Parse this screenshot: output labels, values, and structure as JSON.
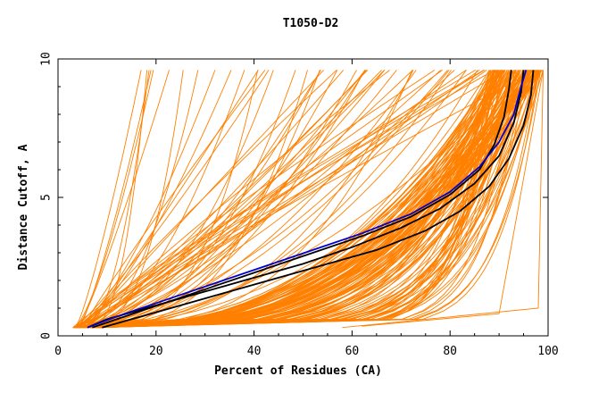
{
  "chart_data": {
    "type": "line",
    "title": "T1050-D2",
    "xlabel": "Percent of Residues (CA)",
    "ylabel": "Distance Cutoff, A",
    "xlim": [
      0,
      100
    ],
    "ylim": [
      0,
      10
    ],
    "xticks": [
      0,
      20,
      40,
      60,
      80,
      100
    ],
    "yticks": [
      0,
      5,
      10
    ],
    "grid": false,
    "legend": "none",
    "colors": {
      "background_series": "#ff8000",
      "highlight_dark": "#000000",
      "highlight_blue": "#0000cc"
    },
    "series_groups": [
      {
        "color": "#ff8000",
        "count": 140,
        "description_pattern": "dense band of model GDT curves",
        "x_start_range": [
          3,
          9
        ],
        "x_end_range": [
          88,
          99
        ]
      },
      {
        "color": "#ff8000",
        "count": 60,
        "description_pattern": "sparse steep curves",
        "x_start_range": [
          3,
          6
        ],
        "x_end_range": [
          15,
          99
        ]
      }
    ],
    "highlight_series": [
      {
        "color": "#000000",
        "x": [
          6,
          10,
          20,
          30,
          40,
          50,
          60,
          70,
          78,
          85,
          90,
          93,
          94.5,
          95
        ],
        "y": [
          0.3,
          0.6,
          1.1,
          1.6,
          2.1,
          2.6,
          3.2,
          3.9,
          4.6,
          5.5,
          6.5,
          7.7,
          8.8,
          9.6
        ]
      },
      {
        "color": "#000000",
        "x": [
          9,
          15,
          25,
          35,
          45,
          55,
          65,
          75,
          82,
          88,
          92,
          95,
          96.5,
          97
        ],
        "y": [
          0.3,
          0.6,
          1.1,
          1.6,
          2.1,
          2.6,
          3.1,
          3.8,
          4.5,
          5.4,
          6.4,
          7.6,
          8.7,
          9.6
        ]
      },
      {
        "color": "#000000",
        "x": [
          7,
          12,
          22,
          32,
          42,
          52,
          62,
          72,
          80,
          86,
          89,
          91,
          92,
          92.5
        ],
        "y": [
          0.3,
          0.6,
          1.2,
          1.8,
          2.4,
          3.0,
          3.6,
          4.3,
          5.1,
          6.0,
          6.9,
          7.9,
          8.9,
          9.6
        ]
      },
      {
        "color": "#0000cc",
        "x": [
          6,
          12,
          22,
          32,
          42,
          52,
          62,
          72,
          80,
          86,
          90,
          93,
          94.5,
          95.5
        ],
        "y": [
          0.3,
          0.7,
          1.3,
          1.9,
          2.5,
          3.1,
          3.7,
          4.4,
          5.2,
          6.1,
          7.0,
          8.0,
          9.0,
          9.6
        ]
      }
    ]
  }
}
